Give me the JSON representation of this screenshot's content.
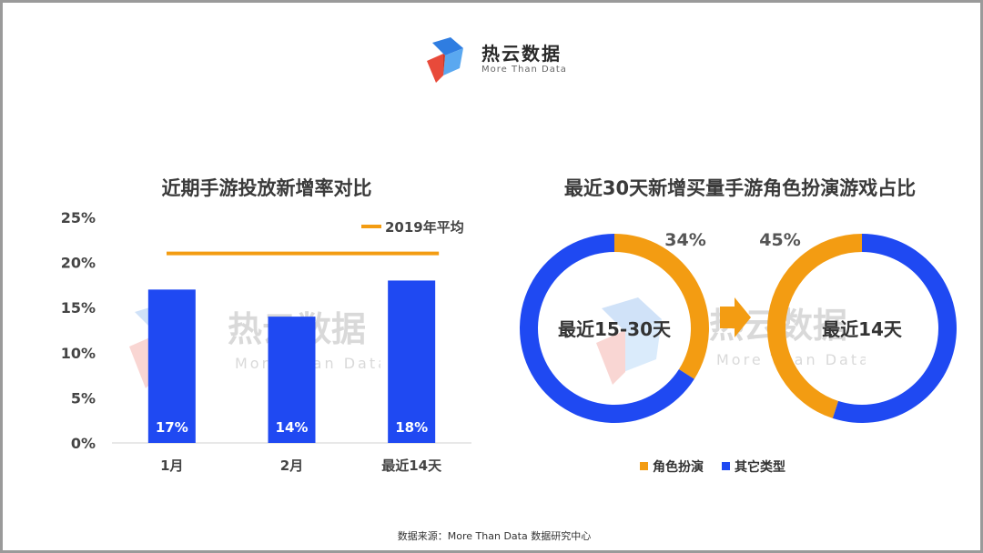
{
  "brand": {
    "name": "热云数据",
    "tagline": "More Than Data",
    "colors": {
      "blue": "#1F49F2",
      "light_blue": "#5aa8f0",
      "red": "#e84a3a"
    }
  },
  "footer": "数据来源：More Than Data 数据研究中心",
  "chart_data": [
    {
      "type": "bar",
      "title": "近期手游投放新增率对比",
      "categories": [
        "1月",
        "2月",
        "最近14天"
      ],
      "values": [
        17,
        14,
        18
      ],
      "data_labels": [
        "17%",
        "14%",
        "18%"
      ],
      "ylim": [
        0,
        25
      ],
      "yticks": [
        0,
        5,
        10,
        15,
        20,
        25
      ],
      "ytick_labels": [
        "0%",
        "5%",
        "10%",
        "15%",
        "20%",
        "25%"
      ],
      "bar_color": "#1F49F2",
      "reference_line": {
        "name": "2019年平均",
        "value": 21,
        "color": "#F39C12"
      },
      "legend_position": "top-right",
      "grid": false
    },
    {
      "type": "pie",
      "title": "最近30天新增买量手游角色扮演游戏占比",
      "colors": {
        "角色扮演": "#F39C12",
        "其它类型": "#1F49F2"
      },
      "legend": [
        "角色扮演",
        "其它类型"
      ],
      "legend_position": "bottom",
      "charts": [
        {
          "name": "最近15-30天",
          "slices": [
            {
              "label": "角色扮演",
              "value": 34
            },
            {
              "label": "其它类型",
              "value": 66
            }
          ],
          "label": "34%"
        },
        {
          "name": "最近14天",
          "slices": [
            {
              "label": "角色扮演",
              "value": 45
            },
            {
              "label": "其它类型",
              "value": 55
            }
          ],
          "label": "45%"
        }
      ]
    }
  ]
}
